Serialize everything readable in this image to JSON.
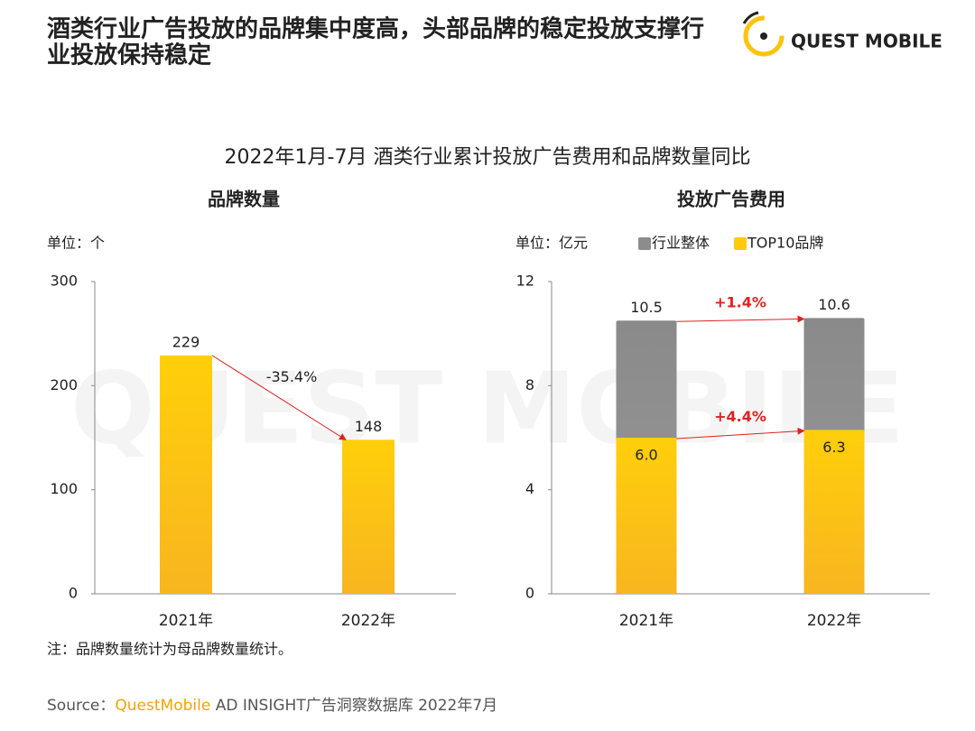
{
  "header": {
    "title": [
      "酒类行业广告投放的品牌集中度高，头部品牌的稳定投放支撑行",
      "业投放保持稳定"
    ]
  },
  "logo": {
    "text": "QUEST MOBILE"
  },
  "watermark": "QUEST MOBILE",
  "suptitle": "2022年1月-7月 酒类行业累计投放广告费用和品牌数量同比",
  "chart_data": [
    {
      "type": "bar",
      "title": "品牌数量",
      "unit": "单位：个",
      "categories": [
        "2021年",
        "2022年"
      ],
      "values": [
        229,
        148
      ],
      "color": "#ffc90e",
      "ylim": [
        0,
        300
      ],
      "yticks": [
        0,
        100,
        200,
        300
      ],
      "annotation": "-35.4%"
    },
    {
      "type": "overlap_bar",
      "title": "投放广告费用",
      "unit": "单位：亿元",
      "categories": [
        "2021年",
        "2022年"
      ],
      "series": [
        {
          "name": "行业整体",
          "color": "#8c8c8c",
          "values": [
            10.5,
            10.6
          ],
          "value_labels": [
            "10.5",
            "10.6"
          ],
          "annotation": "+1.4%"
        },
        {
          "name": "TOP10品牌",
          "color": "#ffc90e",
          "values": [
            6.0,
            6.3
          ],
          "value_labels": [
            "6.0",
            "6.3"
          ],
          "annotation": "+4.4%"
        }
      ],
      "ylim": [
        0,
        12
      ],
      "yticks": [
        0,
        4,
        8,
        12
      ]
    }
  ],
  "note": "注：品牌数量统计为母品牌数量统计。",
  "source": {
    "prefix": "Source：",
    "brand": "QuestMobile",
    "rest": " AD INSIGHT广告洞察数据库 2022年7月"
  }
}
